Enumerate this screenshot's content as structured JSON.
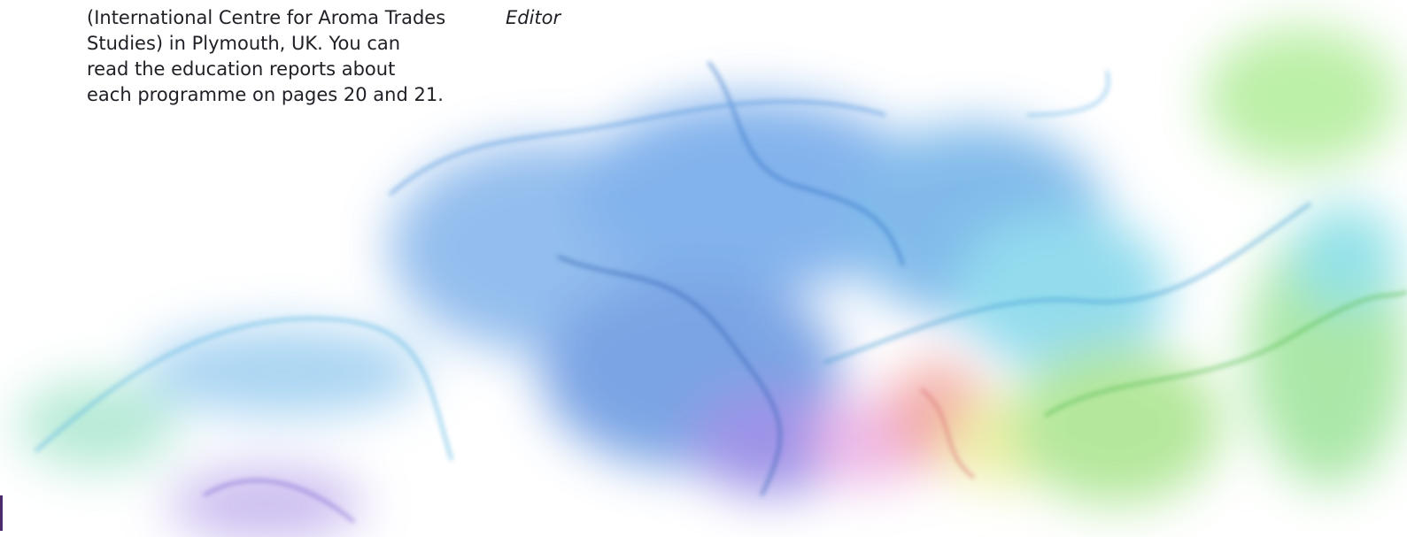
{
  "article": {
    "lines": [
      "(International Centre for Aroma Trades",
      "Studies) in Plymouth, UK. You can",
      "read the education reports about",
      "each programme on pages 20 and 21."
    ],
    "signature": "Editor"
  }
}
